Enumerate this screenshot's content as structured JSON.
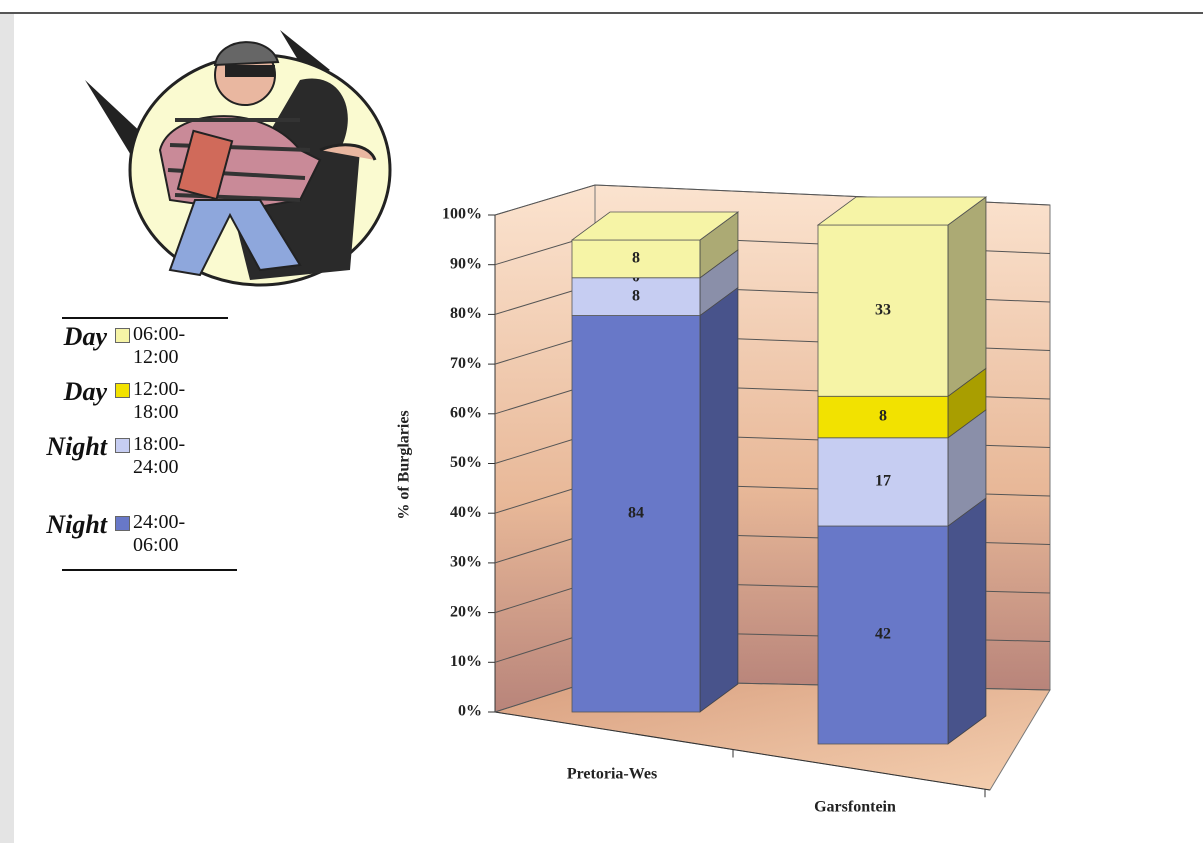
{
  "chart_data": {
    "type": "stacked-bar-3d",
    "y_label": "% of Burglaries",
    "categories": [
      "Pretoria-Wes",
      "Garsfontein"
    ],
    "series": [
      {
        "name": "06:00-12:00",
        "period": "Day",
        "color": "#f6f4a6",
        "values": [
          8,
          33
        ]
      },
      {
        "name": "12:00-18:00",
        "period": "Day",
        "color": "#f2e200",
        "values": [
          0,
          8
        ]
      },
      {
        "name": "18:00-24:00",
        "period": "Night",
        "color": "#c6cdf2",
        "values": [
          8,
          17
        ]
      },
      {
        "name": "24:00-06:00",
        "period": "Night",
        "color": "#6878c8",
        "values": [
          84,
          42
        ]
      }
    ],
    "ylim": [
      0,
      100
    ],
    "yticks": [
      {
        "value": 0,
        "label": "0%"
      },
      {
        "value": 10,
        "label": "10%"
      },
      {
        "value": 20,
        "label": "20%"
      },
      {
        "value": 30,
        "label": "30%"
      },
      {
        "value": 40,
        "label": "40%"
      },
      {
        "value": 50,
        "label": "50%"
      },
      {
        "value": 60,
        "label": "60%"
      },
      {
        "value": 70,
        "label": "70%"
      },
      {
        "value": 80,
        "label": "80%"
      },
      {
        "value": 90,
        "label": "90%"
      },
      {
        "value": 100,
        "label": "100%"
      }
    ],
    "grid": true
  }
}
